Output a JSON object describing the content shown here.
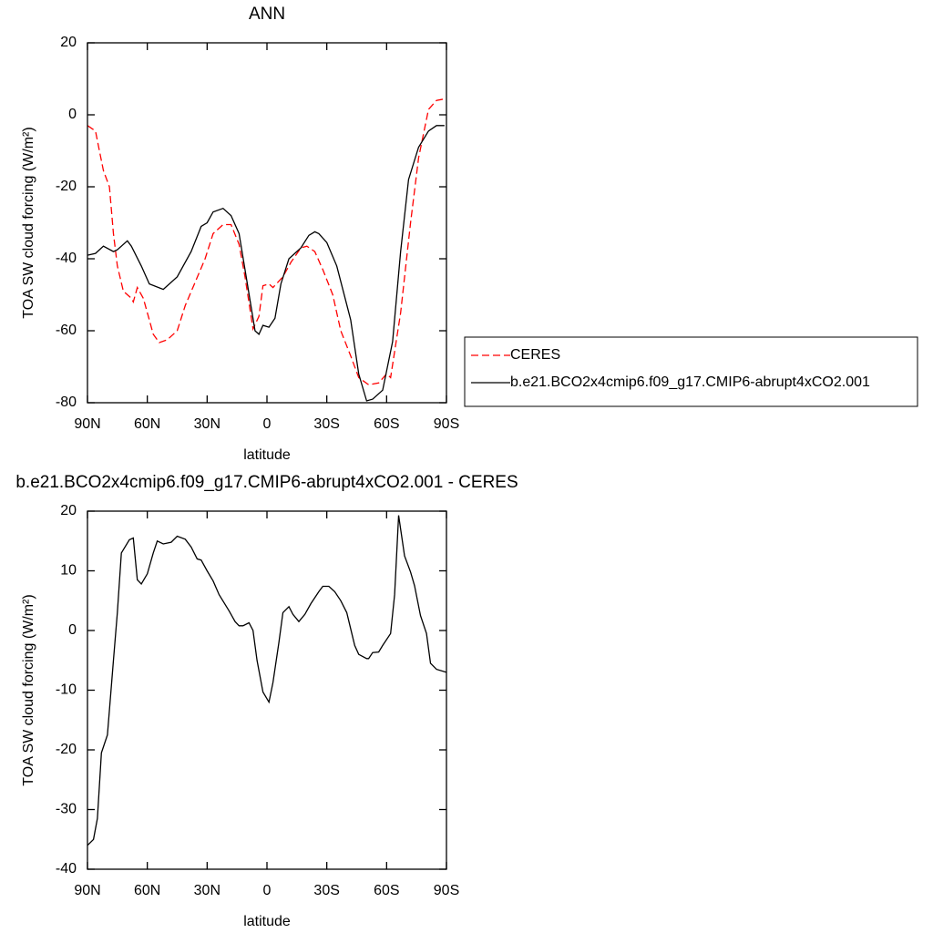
{
  "chart_data": [
    {
      "type": "line",
      "title": "ANN",
      "xlabel": "latitude",
      "ylabel": "TOA SW cloud forcing (W/m²)",
      "xlim": [
        90,
        -90
      ],
      "ylim": [
        -80,
        20
      ],
      "xticks": [
        {
          "value": 90,
          "label": "90N"
        },
        {
          "value": 60,
          "label": "60N"
        },
        {
          "value": 30,
          "label": "30N"
        },
        0,
        {
          "value": -30,
          "label": "30S"
        },
        {
          "value": -60,
          "label": "60S"
        },
        {
          "value": -90,
          "label": "90S"
        }
      ],
      "yticks": [
        -80,
        -60,
        -40,
        -20,
        0,
        20
      ],
      "legend": "right",
      "series": [
        {
          "name": "CERES",
          "color": "#ff0000",
          "style": "dashed",
          "x": [
            90,
            86,
            84,
            82,
            79,
            77,
            75,
            72,
            68,
            67,
            65,
            62,
            59,
            57,
            54,
            50,
            45,
            41,
            36,
            31,
            27,
            22,
            18,
            14,
            11,
            7,
            4,
            2,
            -1,
            -3,
            -8,
            -12,
            -17,
            -20,
            -24,
            -28,
            -33,
            -37,
            -42,
            -46,
            -51,
            -56,
            -60,
            -62,
            -67,
            -72,
            -76,
            -81,
            -85,
            -90
          ],
          "values": [
            -3,
            -4.5,
            -10,
            -15.5,
            -20,
            -33,
            -42,
            -49,
            -51,
            -52,
            -48,
            -51,
            -57,
            -61,
            -63.3,
            -62.5,
            -60,
            -53,
            -46.5,
            -40,
            -33,
            -30.5,
            -30.5,
            -36,
            -45,
            -59.5,
            -56,
            -47.5,
            -47,
            -48,
            -45,
            -41,
            -37,
            -36.5,
            -38,
            -43,
            -50,
            -60,
            -67,
            -73,
            -75,
            -74.5,
            -72,
            -73,
            -55,
            -30,
            -12,
            1.5,
            4,
            4.5
          ]
        },
        {
          "name": "b.e21.BCO2x4cmip6.f09_g17.CMIP6-abrupt4xCO2.001",
          "color": "#000000",
          "style": "solid",
          "x": [
            90,
            86,
            82,
            77,
            75,
            70,
            68,
            63,
            59,
            52,
            45,
            38,
            33,
            30,
            27,
            22,
            18,
            14,
            11,
            6,
            4,
            2,
            -1,
            -4,
            -7,
            -11,
            -17,
            -21,
            -24,
            -26,
            -30,
            -35,
            -42,
            -46,
            -50,
            -53,
            -58,
            -63,
            -67,
            -71,
            -76,
            -81,
            -85,
            -89
          ],
          "values": [
            -39,
            -38.5,
            -36.5,
            -38,
            -37.5,
            -35,
            -36.5,
            -42,
            -47,
            -48.5,
            -45,
            -38,
            -31,
            -30,
            -27,
            -26,
            -28,
            -33,
            -43,
            -60,
            -61,
            -58.5,
            -59,
            -56.5,
            -47,
            -40,
            -37,
            -33.5,
            -32.5,
            -33,
            -35.5,
            -42,
            -57,
            -72,
            -79.5,
            -79,
            -76.5,
            -63,
            -38,
            -18,
            -9,
            -4.5,
            -3,
            -3
          ]
        }
      ]
    },
    {
      "type": "line",
      "title": "b.e21.BCO2x4cmip6.f09_g17.CMIP6-abrupt4xCO2.001 - CERES",
      "xlabel": "latitude",
      "ylabel": "TOA SW cloud forcing (W/m²)",
      "xlim": [
        90,
        -90
      ],
      "ylim": [
        -40,
        20
      ],
      "xticks": [
        {
          "value": 90,
          "label": "90N"
        },
        {
          "value": 60,
          "label": "60N"
        },
        {
          "value": 30,
          "label": "30N"
        },
        0,
        {
          "value": -30,
          "label": "30S"
        },
        {
          "value": -60,
          "label": "60S"
        },
        {
          "value": -90,
          "label": "90S"
        }
      ],
      "yticks": [
        -40,
        -30,
        -20,
        -10,
        0,
        10,
        20
      ],
      "series": [
        {
          "color": "#000000",
          "style": "solid",
          "x": [
            90,
            87,
            85,
            83,
            80,
            77,
            75,
            73,
            69,
            67,
            65,
            63,
            60,
            57,
            55,
            52,
            48,
            45,
            41,
            38,
            35,
            33,
            30,
            27,
            24,
            19,
            16,
            14,
            12,
            9,
            7,
            5,
            2,
            -1,
            -3,
            -6,
            -8,
            -11,
            -13,
            -16,
            -19,
            -22,
            -26,
            -28,
            -31,
            -34,
            -37,
            -40,
            -44,
            -46,
            -50,
            -51,
            -53,
            -56,
            -58,
            -62,
            -64,
            -66,
            -69,
            -72,
            -74,
            -77,
            -80,
            -82,
            -85,
            -90
          ],
          "values": [
            -36,
            -35,
            -31.5,
            -20.5,
            -17.5,
            -5,
            3,
            13,
            15.2,
            15.5,
            8.5,
            7.8,
            9.5,
            13,
            15,
            14.5,
            14.8,
            15.8,
            15.3,
            14,
            12,
            11.8,
            10,
            8.3,
            6,
            3.3,
            1.5,
            0.8,
            0.8,
            1.3,
            0,
            -5,
            -10.3,
            -12,
            -8.7,
            -2,
            3,
            4,
            2.7,
            1.5,
            2.7,
            4.5,
            6.5,
            7.4,
            7.4,
            6.5,
            5,
            3,
            -2.5,
            -4,
            -4.7,
            -4.7,
            -3.7,
            -3.6,
            -2.5,
            -0.5,
            6,
            19.3,
            12.5,
            9.8,
            7.5,
            2.5,
            -0.5,
            -5.5,
            -6.5,
            -7
          ]
        }
      ]
    }
  ]
}
